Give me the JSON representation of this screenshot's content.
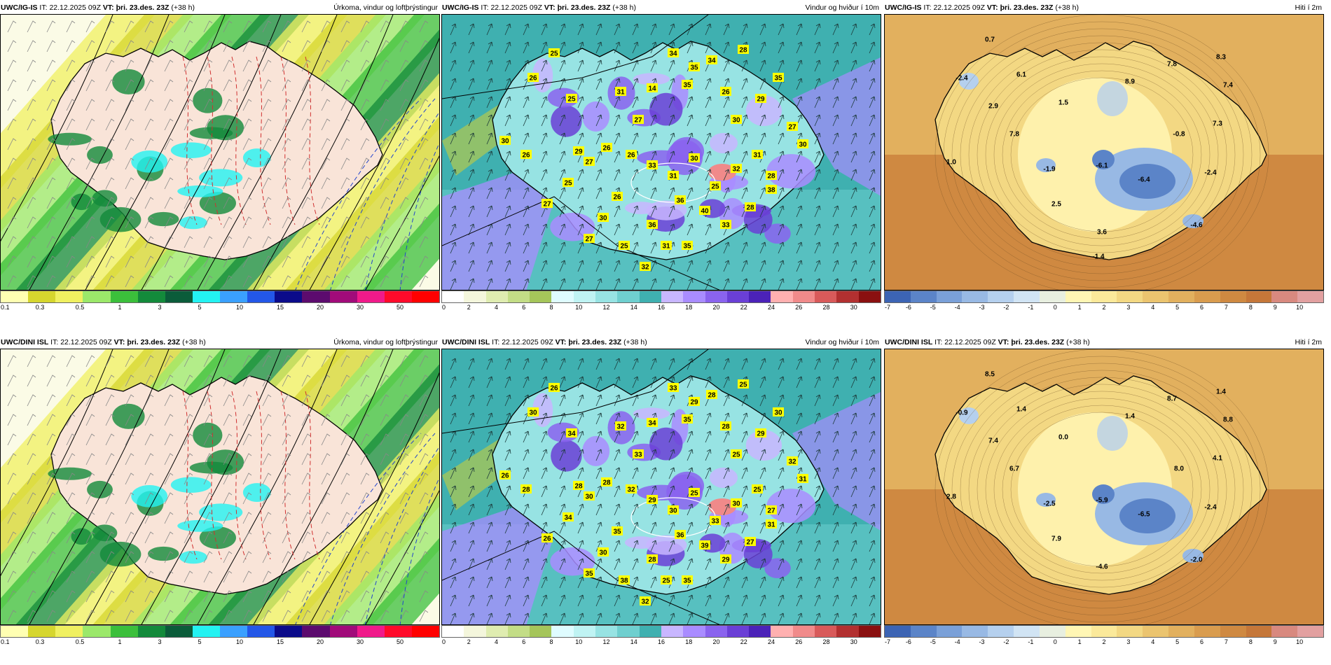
{
  "colors": {
    "precip": [
      "#ffffb2",
      "#d6d62e",
      "#f0f060",
      "#9be86a",
      "#3bbf3b",
      "#138a3b",
      "#0b5c3a",
      "#23f2f2",
      "#3aa0ff",
      "#2357e8",
      "#0b0b8a",
      "#5c0b6e",
      "#a10b7a",
      "#f01a8a",
      "#ff0a2a",
      "#ff0000"
    ],
    "wind": [
      "#ffffff",
      "#f4f6dc",
      "#dfecb0",
      "#c3dd86",
      "#a5c55a",
      "#dffcff",
      "#bff3f3",
      "#97e3e3",
      "#6fcfcf",
      "#3fb0b0",
      "#c8b6ff",
      "#a98cff",
      "#8a63ee",
      "#6a3fd6",
      "#4b22b8",
      "#ffb0b0",
      "#f08a8a",
      "#d85a5a",
      "#b23030",
      "#8a1010"
    ],
    "temp": [
      "#3c64b4",
      "#5b84c8",
      "#7aa0d8",
      "#98b9e4",
      "#b5d0ee",
      "#d1e4f4",
      "#e8efe0",
      "#fff6b4",
      "#fbe99a",
      "#f3d883",
      "#ebc46f",
      "#e2b05e",
      "#d99c4e",
      "#cf8941",
      "#c57739",
      "#d8897f",
      "#e2a0a0"
    ]
  },
  "panels": [
    {
      "model": "UWC/IG-IS",
      "it_label": "IT:",
      "it_value": "22.12.2025 09Z",
      "vt_label": "VT:",
      "vt_value": "þri. 23.des. 23Z",
      "lead": "(+38 h)",
      "title": "Úrkoma, vindur og loftþrýstingur",
      "ticks": [
        "0.1",
        "0.3",
        "0.5",
        "1",
        "3",
        "5",
        "10",
        "15",
        "20",
        "30",
        "50"
      ],
      "labels": []
    },
    {
      "model": "UWC/IG-IS",
      "it_label": "IT:",
      "it_value": "22.12.2025 09Z",
      "vt_label": "VT:",
      "vt_value": "þri. 23.des. 23Z",
      "lead": "(+38 h)",
      "title": "Vindur og hviður í 10m",
      "ticks": [
        "0",
        "2",
        "4",
        "6",
        "8",
        "10",
        "12",
        "14",
        "16",
        "18",
        "20",
        "22",
        "24",
        "26",
        "28",
        "30"
      ],
      "labels": [
        "25",
        "26",
        "25",
        "34",
        "35",
        "34",
        "28",
        "26",
        "31",
        "14",
        "35",
        "30",
        "29",
        "35",
        "27",
        "30",
        "27",
        "29",
        "25",
        "27",
        "26",
        "26",
        "33",
        "31",
        "30",
        "25",
        "32",
        "31",
        "28",
        "36",
        "40",
        "26",
        "30",
        "36",
        "31",
        "33",
        "28",
        "27",
        "26",
        "30",
        "38",
        "25",
        "27",
        "32",
        "35"
      ]
    },
    {
      "model": "UWC/IG-IS",
      "it_label": "IT:",
      "it_value": "22.12.2025 09Z",
      "vt_label": "VT:",
      "vt_value": "þri. 23.des. 23Z",
      "lead": "(+38 h)",
      "title": "Hiti í 2m",
      "ticks": [
        "-7",
        "-6",
        "-5",
        "-4",
        "-3",
        "-2",
        "-1",
        "0",
        "1",
        "2",
        "3",
        "4",
        "5",
        "6",
        "7",
        "8",
        "9",
        "10"
      ],
      "labels": [
        "0.7",
        "-2.4",
        "6.1",
        "8.9",
        "7.8",
        "8.3",
        "7.4",
        "2.9",
        "1.5",
        "7.3",
        "7.8",
        "-0.8",
        "1.0",
        "-1.9",
        "-6.1",
        "-6.4",
        "-2.4",
        "2.5",
        "3.6",
        "-4.6",
        "-1.4"
      ]
    },
    {
      "model": "UWC/DINI ISL",
      "it_label": "IT:",
      "it_value": "22.12.2025 09Z",
      "vt_label": "VT:",
      "vt_value": "þri. 23.des. 23Z",
      "lead": "(+38 h)",
      "title": "Úrkoma, vindur og loftþrýstingur",
      "ticks": [
        "0.1",
        "0.3",
        "0.5",
        "1",
        "3",
        "5",
        "10",
        "15",
        "20",
        "30",
        "50"
      ],
      "labels": []
    },
    {
      "model": "UWC/DINI ISL",
      "it_label": "IT:",
      "it_value": "22.12.2025 09Z",
      "vt_label": "VT:",
      "vt_value": "þri. 23.des. 23Z",
      "lead": "(+38 h)",
      "title": "Vindur og hviður í 10m",
      "ticks": [
        "0",
        "2",
        "4",
        "6",
        "8",
        "10",
        "12",
        "14",
        "16",
        "18",
        "20",
        "22",
        "24",
        "26",
        "28",
        "30"
      ],
      "labels": [
        "26",
        "30",
        "34",
        "33",
        "29",
        "28",
        "25",
        "28",
        "32",
        "34",
        "35",
        "25",
        "29",
        "30",
        "32",
        "31",
        "33",
        "28",
        "34",
        "30",
        "28",
        "32",
        "29",
        "30",
        "25",
        "33",
        "30",
        "25",
        "27",
        "36",
        "39",
        "35",
        "30",
        "28",
        "25",
        "29",
        "27",
        "26",
        "28",
        "26",
        "31",
        "38",
        "35",
        "32",
        "35"
      ]
    },
    {
      "model": "UWC/DINI ISL",
      "it_label": "IT:",
      "it_value": "22.12.2025 09Z",
      "vt_label": "VT:",
      "vt_value": "þri. 23.des. 23Z",
      "lead": "(+38 h)",
      "title": "Hiti í 2m",
      "ticks": [
        "-7",
        "-6",
        "-5",
        "-4",
        "-3",
        "-2",
        "-1",
        "0",
        "1",
        "2",
        "3",
        "4",
        "5",
        "6",
        "7",
        "8",
        "9",
        "10"
      ],
      "labels": [
        "8.5",
        "-0.9",
        "1.4",
        "1.4",
        "8.7",
        "1.4",
        "8.8",
        "7.4",
        "0.0",
        "4.1",
        "6.7",
        "8.0",
        "2.8",
        "-2.5",
        "-5.9",
        "-6.5",
        "-2.4",
        "7.9",
        "-4.6",
        "-2.0"
      ]
    }
  ]
}
